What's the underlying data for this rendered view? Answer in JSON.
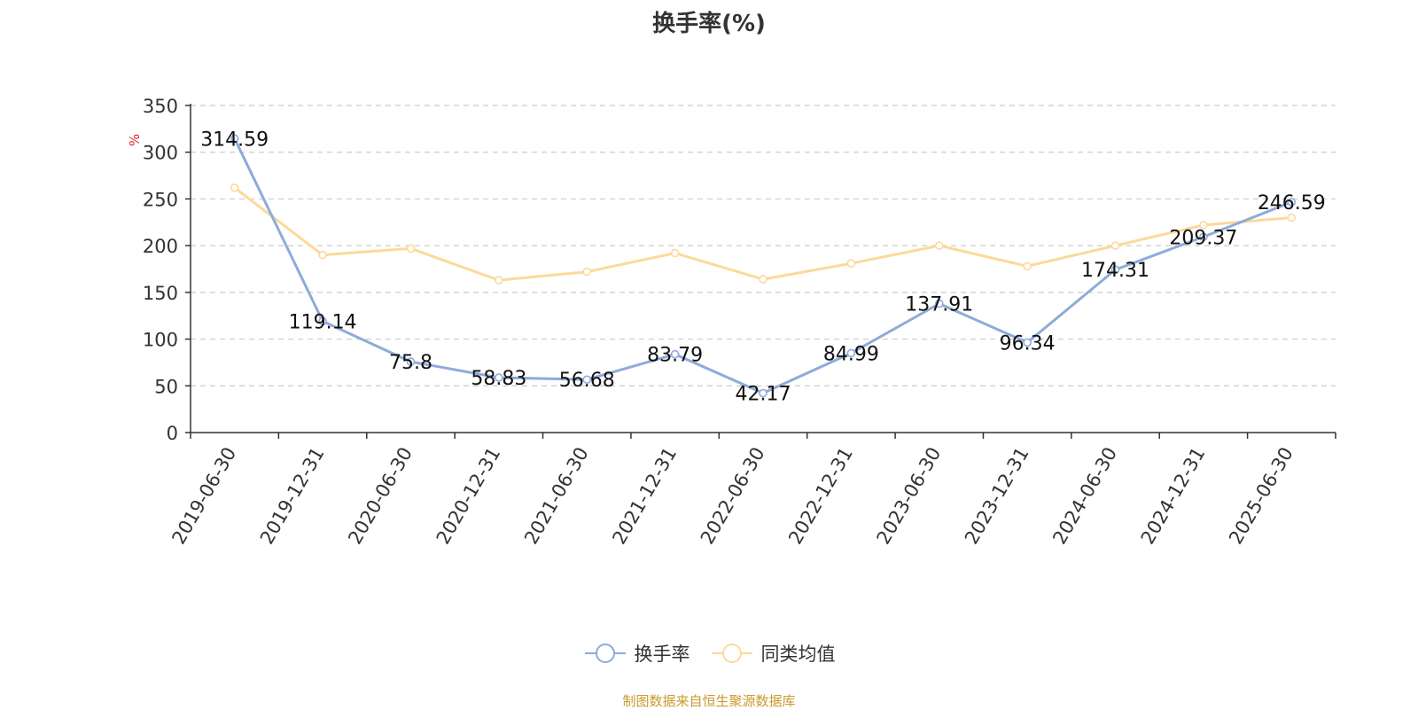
{
  "chart_data": {
    "type": "line",
    "title": "换手率(%)",
    "ylabel": "%",
    "xlabel": "",
    "ylim": [
      0,
      350
    ],
    "yticks": [
      0,
      50,
      100,
      150,
      200,
      250,
      300,
      350
    ],
    "grid": true,
    "legend_position": "bottom",
    "categories": [
      "2019-06-30",
      "2019-12-31",
      "2020-06-30",
      "2020-12-31",
      "2021-06-30",
      "2021-12-31",
      "2022-06-30",
      "2022-12-31",
      "2023-06-30",
      "2023-12-31",
      "2024-06-30",
      "2024-12-31",
      "2025-06-30"
    ],
    "series": [
      {
        "name": "换手率",
        "color": "#8eabd9",
        "show_labels": true,
        "values": [
          314.59,
          119.14,
          75.8,
          58.83,
          56.68,
          83.79,
          42.17,
          84.99,
          137.91,
          96.34,
          174.31,
          209.37,
          246.59
        ]
      },
      {
        "name": "同类均值",
        "color": "#fcd99a",
        "show_labels": false,
        "values": [
          262,
          190,
          197,
          163,
          172,
          192,
          164,
          181,
          200,
          178,
          200,
          222,
          230
        ]
      }
    ]
  },
  "source_note": "制图数据来自恒生聚源数据库",
  "colors": {
    "source_note": "#c99a2e",
    "axis": "#333333",
    "grid": "#cccccc",
    "ylabel": "#e02020"
  }
}
